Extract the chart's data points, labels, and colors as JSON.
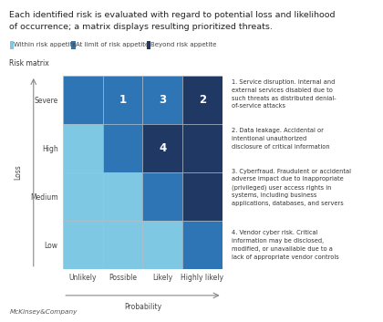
{
  "title_line1": "Each identified risk is evaluated with regard to potential loss and likelihood",
  "title_line2": "of occurrence; a matrix displays resulting prioritized threats.",
  "subtitle": "Risk matrix",
  "legend_items": [
    {
      "label": "Within risk appetite",
      "color": "#7ec8e3"
    },
    {
      "label": "At limit of risk appetite",
      "color": "#2e75b6"
    },
    {
      "label": "Beyond risk appetite",
      "color": "#1f3864"
    }
  ],
  "rows": [
    "Severe",
    "High",
    "Medium",
    "Low"
  ],
  "cols": [
    "Unlikely",
    "Possible",
    "Likely",
    "Highly likely"
  ],
  "cell_colors": [
    [
      "#2e75b6",
      "#2e75b6",
      "#2e75b6",
      "#1f3864"
    ],
    [
      "#7ec8e3",
      "#2e75b6",
      "#1f3864",
      "#1f3864"
    ],
    [
      "#7ec8e3",
      "#7ec8e3",
      "#2e75b6",
      "#1f3864"
    ],
    [
      "#7ec8e3",
      "#7ec8e3",
      "#7ec8e3",
      "#2e75b6"
    ]
  ],
  "cell_labels": [
    [
      "",
      "1",
      "3",
      "2"
    ],
    [
      "",
      "",
      "4",
      ""
    ],
    [
      "",
      "",
      "",
      ""
    ],
    [
      "",
      "",
      "",
      ""
    ]
  ],
  "xlabel": "Probability",
  "ylabel": "Loss",
  "footer": "McKinsey&Company",
  "ann1_bold": "Service disruption.",
  "ann1_rest": " Internal and\nexternal services disabled due to\nsuch threats as distributed denial-\nof-service attacks",
  "ann2_bold": "Data leakage.",
  "ann2_rest": " Accidental or\nintentional unauthorized\ndisclosure of critical information",
  "ann3_bold": "Cyberfraud.",
  "ann3_rest": " Fraudulent or accidental\nadverse impact due to inappropriate\n(privileged) user access rights in\nsystems, including business\napplications, databases, and servers",
  "ann4_bold": "Vendor cyber risk.",
  "ann4_rest": " Critical\ninformation may be disclosed,\nmodified, or unavailable due to a\nlack of appropriate vendor controls",
  "grid_color": "#b0b8c0",
  "bg_color": "#ffffff",
  "cell_label_fontsize": 8.5,
  "ann_fontsize": 4.8
}
